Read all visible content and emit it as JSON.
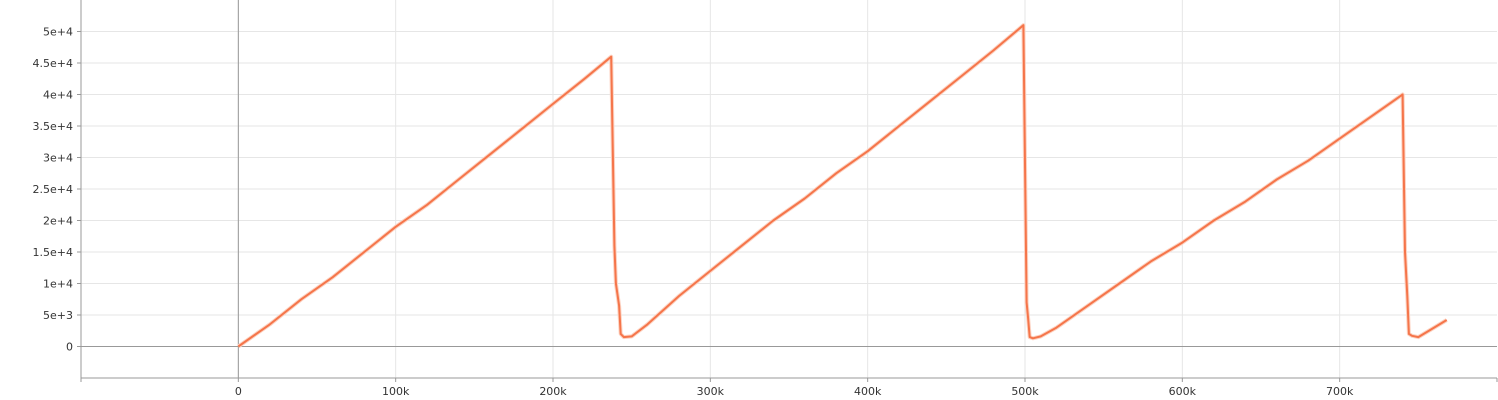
{
  "chart_data": {
    "type": "line",
    "title": "",
    "xlabel": "",
    "ylabel": "",
    "xlim": [
      -100000,
      800000
    ],
    "ylim": [
      -5000,
      55000
    ],
    "grid": true,
    "legend": "none",
    "x_ticks": [
      {
        "value": 0,
        "label": "0"
      },
      {
        "value": 100000,
        "label": "100k"
      },
      {
        "value": 200000,
        "label": "200k"
      },
      {
        "value": 300000,
        "label": "300k"
      },
      {
        "value": 400000,
        "label": "400k"
      },
      {
        "value": 500000,
        "label": "500k"
      },
      {
        "value": 600000,
        "label": "600k"
      },
      {
        "value": 700000,
        "label": "700k"
      }
    ],
    "y_ticks": [
      {
        "value": 0,
        "label": "0"
      },
      {
        "value": 5000,
        "label": "5e+3"
      },
      {
        "value": 10000,
        "label": "1e+4"
      },
      {
        "value": 15000,
        "label": "1.5e+4"
      },
      {
        "value": 20000,
        "label": "2e+4"
      },
      {
        "value": 25000,
        "label": "2.5e+4"
      },
      {
        "value": 30000,
        "label": "3e+4"
      },
      {
        "value": 35000,
        "label": "3.5e+4"
      },
      {
        "value": 40000,
        "label": "4e+4"
      },
      {
        "value": 45000,
        "label": "4.5e+4"
      },
      {
        "value": 50000,
        "label": "5e+4"
      }
    ],
    "colors": {
      "line": "#f5754a",
      "line_light": "#fcd3c3",
      "axis": "#999999",
      "grid": "#e6e6e6"
    },
    "series": [
      {
        "points": [
          [
            0,
            0
          ],
          [
            20000,
            3500
          ],
          [
            40000,
            7500
          ],
          [
            60000,
            11000
          ],
          [
            80000,
            15000
          ],
          [
            100000,
            19000
          ],
          [
            120000,
            22500
          ],
          [
            140000,
            26500
          ],
          [
            160000,
            30500
          ],
          [
            180000,
            34500
          ],
          [
            200000,
            38500
          ],
          [
            220000,
            42500
          ],
          [
            237000,
            46000
          ],
          [
            239000,
            16000
          ],
          [
            240000,
            10000
          ],
          [
            242000,
            6500
          ],
          [
            243000,
            2000
          ],
          [
            245000,
            1500
          ],
          [
            250000,
            1600
          ],
          [
            260000,
            3500
          ],
          [
            280000,
            8000
          ],
          [
            300000,
            12000
          ],
          [
            320000,
            16000
          ],
          [
            340000,
            20000
          ],
          [
            360000,
            23500
          ],
          [
            380000,
            27500
          ],
          [
            400000,
            31000
          ],
          [
            420000,
            35000
          ],
          [
            440000,
            39000
          ],
          [
            460000,
            43000
          ],
          [
            480000,
            47000
          ],
          [
            499000,
            51000
          ],
          [
            501000,
            7000
          ],
          [
            502000,
            4500
          ],
          [
            503000,
            1500
          ],
          [
            505000,
            1300
          ],
          [
            510000,
            1600
          ],
          [
            520000,
            3000
          ],
          [
            540000,
            6500
          ],
          [
            560000,
            10000
          ],
          [
            580000,
            13500
          ],
          [
            600000,
            16500
          ],
          [
            620000,
            20000
          ],
          [
            640000,
            23000
          ],
          [
            660000,
            26500
          ],
          [
            680000,
            29500
          ],
          [
            700000,
            33000
          ],
          [
            720000,
            36500
          ],
          [
            740000,
            40000
          ],
          [
            741500,
            15000
          ],
          [
            743000,
            8000
          ],
          [
            744000,
            2000
          ],
          [
            746000,
            1700
          ],
          [
            750000,
            1500
          ],
          [
            760000,
            3000
          ],
          [
            768000,
            4200
          ]
        ]
      }
    ]
  }
}
